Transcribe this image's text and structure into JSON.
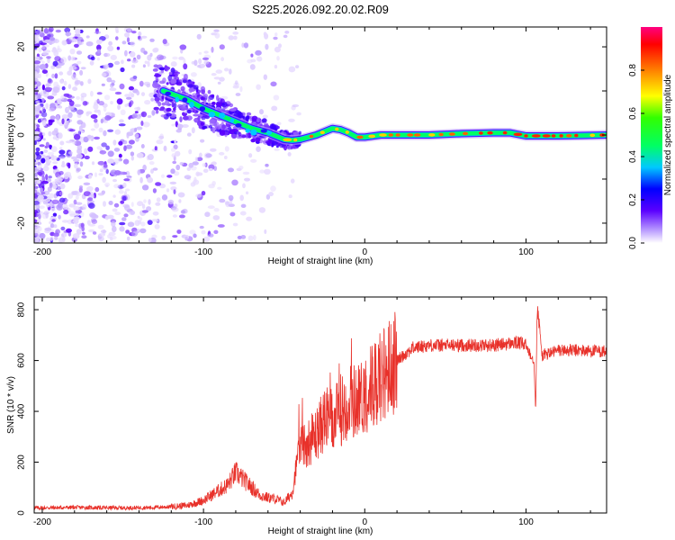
{
  "title": "S225.2026.092.20.02.R09",
  "colors": {
    "snr_line": "#e8312a",
    "spectrum_low": "#b89aff",
    "spectrum_mid": "#3a00ff",
    "spectrum_high": "#ff0000"
  },
  "chart_data": [
    {
      "type": "heatmap",
      "name": "spectrogram",
      "xlabel": "Height of straight line (km)",
      "ylabel": "Frequency (Hz)",
      "xlim": [
        -205,
        150
      ],
      "ylim": [
        -24.5,
        24.5
      ],
      "xticks": [
        -200,
        -100,
        0,
        100
      ],
      "xtick_labels": [
        "-200",
        "-100",
        "0",
        "100"
      ],
      "yticks": [
        -20,
        -10,
        0,
        10,
        20
      ],
      "ytick_labels": [
        "-20",
        "-10",
        "0",
        "10",
        "20"
      ],
      "ridge": {
        "x": [
          -125,
          -110,
          -100,
          -90,
          -80,
          -70,
          -60,
          -50,
          -45,
          -40,
          -30,
          -20,
          -15,
          -10,
          -5,
          0,
          10,
          20,
          40,
          60,
          80,
          90,
          100,
          120,
          150
        ],
        "y": [
          10,
          8,
          6,
          4.5,
          3,
          1.5,
          0.5,
          -1,
          -1.2,
          -1,
          0,
          1.5,
          1.2,
          0.5,
          -0.5,
          -0.5,
          0,
          0,
          0,
          0.3,
          0.5,
          0.5,
          -0.2,
          -0.2,
          0
        ]
      },
      "colorbar": {
        "label": "Normalized spectral amplitude",
        "min": 0.0,
        "max": 1.0,
        "ticks": [
          0.0,
          0.2,
          0.4,
          0.6,
          0.8
        ],
        "tick_labels": [
          "0.0",
          "0.2",
          "0.4",
          "0.6",
          "0.8"
        ]
      }
    },
    {
      "type": "line",
      "name": "snr",
      "xlabel": "Height of straight line (km)",
      "ylabel": "SNR (10 * v/v)",
      "xlim": [
        -205,
        150
      ],
      "ylim": [
        0,
        850
      ],
      "xticks": [
        -200,
        -100,
        0,
        100
      ],
      "xtick_labels": [
        "-200",
        "-100",
        "0",
        "100"
      ],
      "yticks": [
        0,
        200,
        400,
        600,
        800
      ],
      "ytick_labels": [
        "0",
        "200",
        "400",
        "600",
        "800"
      ],
      "series": [
        {
          "name": "SNR",
          "x": [
            -205,
            -180,
            -150,
            -130,
            -120,
            -110,
            -100,
            -90,
            -85,
            -80,
            -75,
            -70,
            -65,
            -60,
            -55,
            -50,
            -45,
            -42,
            -40,
            -35,
            -30,
            -25,
            -20,
            -15,
            -10,
            -5,
            0,
            5,
            10,
            20,
            30,
            40,
            60,
            80,
            95,
            100,
            105,
            106,
            107,
            110,
            120,
            130,
            150
          ],
          "y": [
            20,
            22,
            20,
            22,
            25,
            30,
            50,
            90,
            110,
            160,
            130,
            100,
            70,
            60,
            55,
            40,
            80,
            200,
            260,
            280,
            310,
            370,
            360,
            400,
            440,
            440,
            470,
            510,
            540,
            600,
            650,
            660,
            660,
            660,
            670,
            660,
            600,
            400,
            820,
            620,
            640,
            640,
            635
          ]
        }
      ]
    }
  ]
}
